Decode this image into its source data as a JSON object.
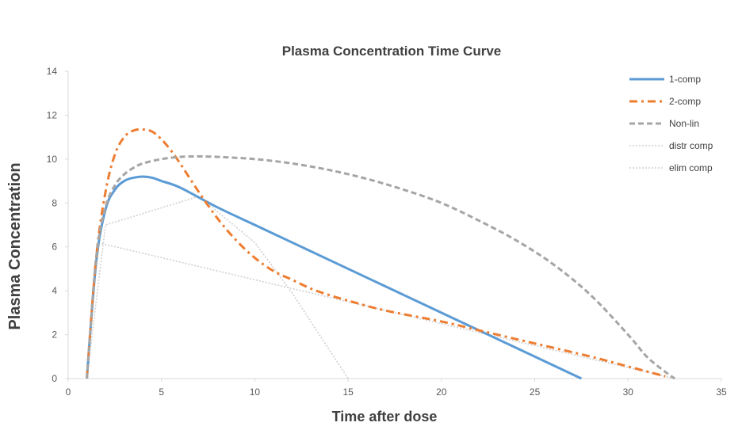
{
  "chart_data": {
    "type": "line",
    "title": "Plasma Concentration Time Curve",
    "xlabel": "Time after dose",
    "ylabel": "Plasma Concentration",
    "xlim": [
      0,
      35
    ],
    "ylim": [
      0,
      14
    ],
    "xticks": [
      0,
      5,
      10,
      15,
      20,
      25,
      30,
      35
    ],
    "yticks": [
      0,
      2,
      4,
      6,
      8,
      10,
      12,
      14
    ],
    "grid": false,
    "legend_position": "top-right",
    "series": [
      {
        "name": "1-comp",
        "color": "#5b9bd5",
        "style": "solid",
        "x": [
          1,
          1.5,
          2,
          2.5,
          3,
          3.5,
          4,
          4.5,
          5,
          6,
          8,
          10,
          12,
          15,
          18,
          20,
          22,
          25,
          27.5
        ],
        "y": [
          0,
          5.3,
          7.7,
          8.6,
          9.0,
          9.15,
          9.2,
          9.15,
          9.0,
          8.7,
          7.8,
          7.0,
          6.2,
          5.0,
          3.8,
          3.0,
          2.2,
          1.0,
          0
        ]
      },
      {
        "name": "2-comp",
        "color": "#ed7d31",
        "style": "dashdot",
        "x": [
          1,
          1.5,
          2,
          2.5,
          3,
          3.5,
          4,
          4.5,
          5,
          5.5,
          6,
          7,
          8,
          9,
          10,
          11,
          12,
          13,
          14,
          15,
          17,
          20,
          22,
          25,
          28,
          30,
          32
        ],
        "y": [
          0,
          5.5,
          8.5,
          10.2,
          11.0,
          11.3,
          11.35,
          11.25,
          10.9,
          10.4,
          9.8,
          8.5,
          7.3,
          6.3,
          5.5,
          4.9,
          4.5,
          4.1,
          3.8,
          3.55,
          3.1,
          2.6,
          2.2,
          1.6,
          1.0,
          0.55,
          0.1
        ]
      },
      {
        "name": "Non-lin",
        "color": "#a5a5a5",
        "style": "dashed",
        "x": [
          1,
          1.5,
          2,
          2.5,
          3,
          3.5,
          4,
          5,
          6,
          7,
          8,
          10,
          12,
          14,
          16,
          18,
          20,
          22,
          24,
          26,
          28,
          30,
          31,
          32,
          32.5
        ],
        "y": [
          0,
          5.5,
          7.8,
          8.8,
          9.3,
          9.6,
          9.8,
          10.0,
          10.1,
          10.12,
          10.1,
          10.0,
          9.8,
          9.5,
          9.1,
          8.6,
          8.0,
          7.2,
          6.3,
          5.2,
          3.8,
          2.0,
          1.0,
          0.3,
          0
        ]
      },
      {
        "name": "distr comp",
        "color": "#d0d0d0",
        "style": "dotted",
        "x": [
          1.8,
          15,
          32.5
        ],
        "y": [
          6.15,
          3.5,
          0
        ]
      },
      {
        "name": "elim comp",
        "color": "#d0d0d0",
        "style": "dotted",
        "x": [
          1,
          2,
          7,
          10,
          12,
          15
        ],
        "y": [
          0,
          7.0,
          8.3,
          6.2,
          3.9,
          0
        ]
      }
    ]
  }
}
